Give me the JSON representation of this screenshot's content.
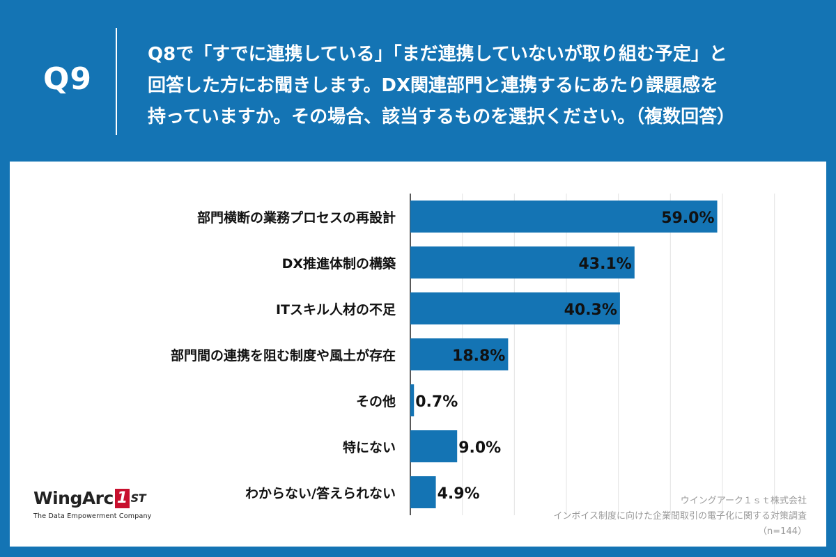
{
  "header": {
    "question_number": "Q9",
    "question_lines": [
      "Q8で「すでに連携している」「まだ連携していないが取り組む予定」と",
      "回答した方にお聞きします。DX関連部門と連携するにあたり課題感を",
      "持っていますか。その場合、該当するものを選択ください。（複数回答）"
    ]
  },
  "chart_data": {
    "type": "bar",
    "orientation": "horizontal",
    "categories": [
      "部門横断の業務プロセスの再設計",
      "DX推進体制の構築",
      "ITスキル人材の不足",
      "部門間の連携を阻む制度や風土が存在",
      "その他",
      "特にない",
      "わからない/答えられない"
    ],
    "values": [
      59.0,
      43.1,
      40.3,
      18.8,
      0.7,
      9.0,
      4.9
    ],
    "value_labels": [
      "59.0%",
      "43.1%",
      "40.3%",
      "18.8%",
      "0.7%",
      "9.0%",
      "4.9%"
    ],
    "xlim": [
      0,
      60
    ],
    "grid": true,
    "bar_color": "#1474b4"
  },
  "logo": {
    "name": "WingArc",
    "mark": "1",
    "suffix": "ST",
    "tagline": "The Data Empowerment Company"
  },
  "source": {
    "company": "ウイングアーク１ｓｔ株式会社",
    "survey": "インボイス制度に向けた企業間取引の電子化に関する対策調査",
    "sample": "（n=144）"
  }
}
